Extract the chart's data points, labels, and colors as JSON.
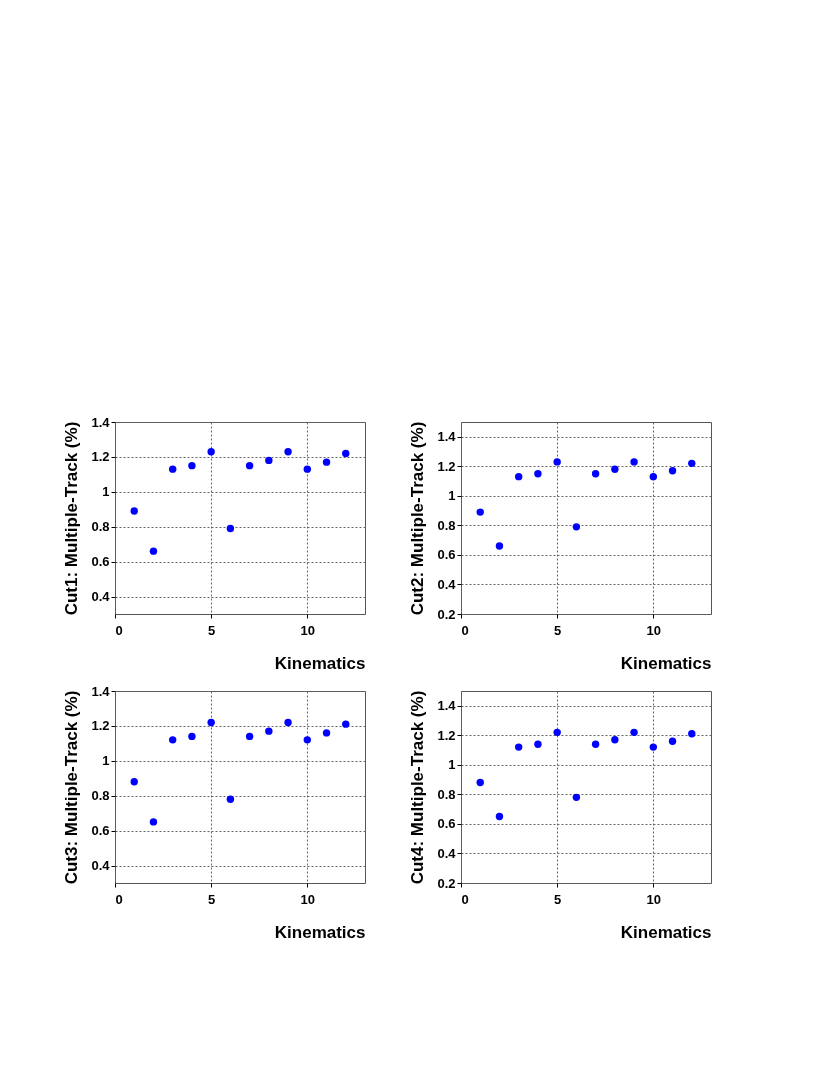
{
  "chart_data": [
    {
      "type": "scatter",
      "x": [
        1,
        2,
        3,
        4,
        5,
        6,
        7,
        8,
        9,
        10,
        11,
        12
      ],
      "values": [
        0.89,
        0.66,
        1.13,
        1.15,
        1.23,
        0.79,
        1.15,
        1.18,
        1.23,
        1.13,
        1.17,
        1.22
      ],
      "color": "#0000ff",
      "xlabel": "Kinematics",
      "ylabel": "Cut1: Multiple-Track (%)",
      "xlim": [
        0,
        13
      ],
      "xticks": [
        0,
        5,
        10
      ],
      "ylim": [
        0.3,
        1.4
      ],
      "yticks": [
        0.4,
        0.6,
        0.8,
        1,
        1.2,
        1.4
      ],
      "grid": true,
      "marker": "circle"
    },
    {
      "type": "scatter",
      "x": [
        1,
        2,
        3,
        4,
        5,
        6,
        7,
        8,
        9,
        10,
        11,
        12
      ],
      "values": [
        0.89,
        0.66,
        1.13,
        1.15,
        1.23,
        0.79,
        1.15,
        1.18,
        1.23,
        1.13,
        1.17,
        1.22
      ],
      "color": "#0000ff",
      "xlabel": "Kinematics",
      "ylabel": "Cut2: Multiple-Track (%)",
      "xlim": [
        0,
        13
      ],
      "xticks": [
        0,
        5,
        10
      ],
      "ylim": [
        0.2,
        1.5
      ],
      "yticks": [
        0.2,
        0.4,
        0.6,
        0.8,
        1,
        1.2,
        1.4
      ],
      "grid": true,
      "marker": "circle"
    },
    {
      "type": "scatter",
      "x": [
        1,
        2,
        3,
        4,
        5,
        6,
        7,
        8,
        9,
        10,
        11,
        12
      ],
      "values": [
        0.88,
        0.65,
        1.12,
        1.14,
        1.22,
        0.78,
        1.14,
        1.17,
        1.22,
        1.12,
        1.16,
        1.21
      ],
      "color": "#0000ff",
      "xlabel": "Kinematics",
      "ylabel": "Cut3: Multiple-Track (%)",
      "xlim": [
        0,
        13
      ],
      "xticks": [
        0,
        5,
        10
      ],
      "ylim": [
        0.3,
        1.4
      ],
      "yticks": [
        0.4,
        0.6,
        0.8,
        1,
        1.2,
        1.4
      ],
      "grid": true,
      "marker": "circle"
    },
    {
      "type": "scatter",
      "x": [
        1,
        2,
        3,
        4,
        5,
        6,
        7,
        8,
        9,
        10,
        11,
        12
      ],
      "values": [
        0.88,
        0.65,
        1.12,
        1.14,
        1.22,
        0.78,
        1.14,
        1.17,
        1.22,
        1.12,
        1.16,
        1.21
      ],
      "color": "#0000ff",
      "xlabel": "Kinematics",
      "ylabel": "Cut4: Multiple-Track (%)",
      "xlim": [
        0,
        13
      ],
      "xticks": [
        0,
        5,
        10
      ],
      "ylim": [
        0.2,
        1.5
      ],
      "yticks": [
        0.2,
        0.4,
        0.6,
        0.8,
        1,
        1.2,
        1.4
      ],
      "grid": true,
      "marker": "circle"
    }
  ]
}
